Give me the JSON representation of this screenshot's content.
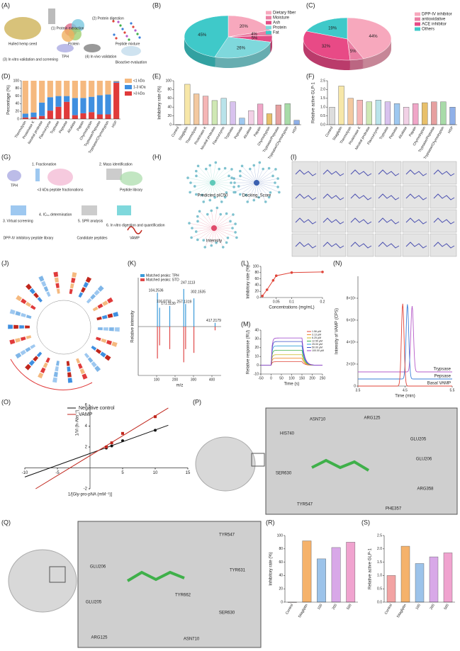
{
  "panel_labels": [
    "(A)",
    "(B)",
    "(C)",
    "(D)",
    "(E)",
    "(F)",
    "(G)",
    "(H)",
    "(I)",
    "(J)",
    "(K)",
    "(L)",
    "(M)",
    "(N)",
    "(O)",
    "(P)",
    "(Q)",
    "(R)",
    "(S)"
  ],
  "diagrams": {
    "A": [
      "Hulled hemp seed",
      "(1) Protein extraction",
      "Protein",
      "(2) Protein digestion",
      "Peptide mixture",
      "(3) In vitro validation and screening",
      "TPH",
      "(4) In vivo validation",
      "Bioactive evaluation"
    ],
    "G": [
      "TPH",
      "1. Fractionation",
      "<3 kDa peptide fractionations",
      "2. Mass identification",
      "Peptide library",
      "3. Virtual screening",
      "4. IC₅₀ determination",
      "5. SPR analysis",
      "6. In vitro digestion and quantification",
      "DPP-IV inhibitory peptide library",
      "Candidate peptides",
      "VAMP"
    ],
    "H": [
      "Predicted pIC50",
      "Docking_Score",
      "Intensity"
    ],
    "P": [
      "ASN710",
      "ARG125",
      "GLU205",
      "GLU206",
      "HIS740",
      "SER630",
      "TYR547",
      "PHE357",
      "ARG358"
    ],
    "Q": [
      "TYR547",
      "TYR631",
      "GLU206",
      "GLU205",
      "TYR662",
      "SER630",
      "ARG125",
      "ASN710"
    ]
  },
  "chart_data": [
    {
      "type": "pie",
      "categories": [
        "Dietary fiber",
        "Moisture",
        "Ash",
        "Protein",
        "Fat"
      ],
      "values": [
        20,
        4,
        5,
        26,
        45
      ],
      "value_labels": [
        "20%",
        "4%",
        "5%",
        "26%",
        "45%"
      ],
      "colors": [
        "#f7a8bd",
        "#ea7fa3",
        "#e34d86",
        "#7fd8dc",
        "#3fc9c9"
      ]
    },
    {
      "type": "pie",
      "categories": [
        "DPP-IV inhibitor",
        "antioxidative",
        "ACE inhibitor",
        "Others"
      ],
      "values": [
        44,
        5,
        32,
        19
      ],
      "value_labels": [
        "44%",
        "5%",
        "32%",
        "19%"
      ],
      "colors": [
        "#f7a8bd",
        "#ea7fa3",
        "#e84a86",
        "#3fc9c9"
      ]
    },
    {
      "type": "bar",
      "ylabel": "Percentage (%)",
      "categories": [
        "Thermolysin",
        "Proteinase K",
        "Neutral protease",
        "Flavourzyme",
        "Trypsase",
        "Pepsase",
        "Alcalase",
        "Papain",
        "Chymotrypsin",
        "Trypsase/Pepsase",
        "Trypsase/Chymotrypsin",
        "HSP"
      ],
      "series": [
        {
          "name": "<1 kDa",
          "color": "#f5b97f",
          "values": [
            86,
            83,
            57,
            43,
            40,
            40,
            45,
            45,
            42,
            38,
            36,
            2
          ]
        },
        {
          "name": "1-3 kDa",
          "color": "#3f8fe0",
          "values": [
            10,
            12,
            35,
            35,
            28,
            15,
            45,
            40,
            40,
            50,
            52,
            3
          ]
        },
        {
          "name": ">3 kDa",
          "color": "#e03a3a",
          "values": [
            4,
            5,
            8,
            22,
            32,
            45,
            10,
            15,
            18,
            12,
            12,
            95
          ]
        }
      ],
      "ylim": [
        0,
        100
      ],
      "yticks": [
        0,
        20,
        40,
        60,
        80,
        100
      ]
    },
    {
      "type": "bar",
      "ylabel": "Inhibitory rate (%)",
      "categories": [
        "Control",
        "Sitagliptin",
        "Thermolysin",
        "Proteinase K",
        "Neutral protease",
        "Flavourzyme",
        "Trypsase",
        "Pepsase",
        "Alcalase",
        "Papain",
        "Chymotrypsin",
        "Trypsase/Pepsase",
        "Trypsase/Chymotrypsin",
        "HSP"
      ],
      "values": [
        0,
        92,
        70,
        65,
        55,
        60,
        52,
        15,
        32,
        47,
        25,
        45,
        48,
        10
      ],
      "colors": [
        "#dddddd",
        "#f7e7a8",
        "#f3c9a0",
        "#f5b6b6",
        "#cfe8b4",
        "#b9e3ea",
        "#d8c2ee",
        "#9ec8f0",
        "#f2d1e6",
        "#f0a6c8",
        "#e8c06a",
        "#e6a0a0",
        "#a8dba8",
        "#8fb0e8"
      ],
      "ylim": [
        0,
        100
      ],
      "yticks": [
        0,
        20,
        40,
        60,
        80,
        100
      ]
    },
    {
      "type": "bar",
      "ylabel": "Relative active GLP-1",
      "categories": [
        "Control",
        "Sitagliptin",
        "Thermolysin",
        "Proteinase K",
        "Neutral protease",
        "Flavourzyme",
        "Trypsase",
        "Pepsase",
        "Alcalase",
        "Papain",
        "Chymotrypsin",
        "Trypsase/Pepsase",
        "Trypsase/Chymotrypsin",
        "HSP"
      ],
      "values": [
        1.0,
        2.2,
        1.5,
        1.4,
        1.3,
        1.4,
        1.3,
        1.2,
        1.0,
        1.2,
        1.25,
        1.3,
        1.3,
        1.0
      ],
      "colors": [
        "#dddddd",
        "#f7e7a8",
        "#f3c9a0",
        "#f5b6b6",
        "#cfe8b4",
        "#b9e3ea",
        "#d8c2ee",
        "#9ec8f0",
        "#f2d1e6",
        "#f0a6c8",
        "#e8c06a",
        "#e6a0a0",
        "#a8dba8",
        "#8fb0e8"
      ],
      "ylim": [
        0,
        2.5
      ],
      "yticks": [
        {
          "value": 0,
          "label": "0.0"
        },
        {
          "value": 0.5,
          "label": "0.5"
        },
        {
          "value": 1,
          "label": "1.0"
        },
        {
          "value": 1.5,
          "label": "1.5"
        },
        {
          "value": 2,
          "label": "2.0"
        },
        {
          "value": 2.5,
          "label": "2.5"
        }
      ]
    },
    {
      "type": "spectrum",
      "xlabel": "m/z",
      "ylabel": "Relative intensity",
      "x": [
        104.2536,
        116.071,
        171.113,
        247.1113,
        257.1319,
        302.1535,
        417.2179
      ],
      "x_labels": [
        "104.2536",
        "116.0710",
        "171.1130",
        "247.1113",
        "257.1319",
        "302.1535",
        "417.2179"
      ],
      "series": [
        {
          "name": "Matched peaks: TPH",
          "color": "#3a9ad9",
          "values": [
            0.9,
            0.5,
            0.55,
            1.0,
            0.6,
            0.75,
            0.1
          ]
        },
        {
          "name": "Matched peaks: STD",
          "color": "#e04a4a",
          "values": [
            0.85,
            0.5,
            0.6,
            0.95,
            0.6,
            0.7,
            0.1
          ]
        }
      ],
      "xlim": [
        0,
        450
      ],
      "xticks": [
        100,
        200,
        300,
        400
      ],
      "ylim": [
        0,
        1.3
      ]
    },
    {
      "type": "line",
      "xlabel": "Concentrations (mg/mL)",
      "ylabel": "Inhibitory rate (%)",
      "x": [
        0.005,
        0.02,
        0.04,
        0.05,
        0.1,
        0.2
      ],
      "values": [
        5,
        25,
        55,
        70,
        80,
        82
      ],
      "color": "#e0453a",
      "xlim": [
        0,
        0.2
      ],
      "xticks": [
        0.05,
        0.1,
        0.2
      ],
      "ylim": [
        0,
        100
      ],
      "yticks": [
        0,
        20,
        40,
        60,
        80,
        100
      ]
    },
    {
      "type": "sensorgram",
      "xlabel": "Time (s)",
      "ylabel": "Relative response (RU)",
      "series": [
        {
          "name": "1.56 μM",
          "color": "#e0453a",
          "values": [
            4
          ]
        },
        {
          "name": "3.13 μM",
          "color": "#f08a2c",
          "values": [
            8
          ]
        },
        {
          "name": "6.25 μM",
          "color": "#c9b820",
          "values": [
            12
          ]
        },
        {
          "name": "12.50 μM",
          "color": "#3fb04a",
          "values": [
            17
          ]
        },
        {
          "name": "25.00 μM",
          "color": "#2f9fd8",
          "values": [
            22
          ]
        },
        {
          "name": "50.00 μM",
          "color": "#3a4fc9",
          "values": [
            27
          ]
        },
        {
          "name": "100.00 μM",
          "color": "#9a3fc9",
          "values": [
            31
          ]
        }
      ],
      "xlim": [
        -50,
        250
      ],
      "xticks": [
        -50,
        0,
        50,
        100,
        150,
        200,
        250
      ],
      "ylim": [
        -10,
        40
      ],
      "yticks": [
        -10,
        0,
        10,
        20,
        30,
        40
      ]
    },
    {
      "type": "chromatogram",
      "xlabel": "Time (min)",
      "ylabel": "Intensity of VAMP (CPS)",
      "series": [
        {
          "name": "Trypsase",
          "color": "#b65cc9",
          "x": [
            4.65
          ],
          "values": [
            600000
          ]
        },
        {
          "name": "Pepsase",
          "color": "#3a7fd9",
          "x": [
            4.55
          ],
          "values": [
            680000
          ]
        },
        {
          "name": "Basal VAMP",
          "color": "#e0453a",
          "x": [
            4.45
          ],
          "values": [
            750000
          ]
        }
      ],
      "xlim": [
        3.5,
        5.5
      ],
      "xticks": [
        3.5,
        4.5,
        5.5
      ],
      "ylim": [
        0,
        1000000
      ],
      "yticks": [
        0,
        {
          "value": 200000,
          "label": "2×10⁵"
        },
        {
          "value": 400000,
          "label": "4×10⁵"
        },
        {
          "value": 600000,
          "label": "6×10⁵"
        },
        {
          "value": 800000,
          "label": "8×10⁵"
        }
      ]
    },
    {
      "type": "scatter",
      "fit_lines": true,
      "xlabel": "1/[Gly-pro-pNA (mM⁻¹)]",
      "ylabel": "1/Vi (h·Abs⁻¹)",
      "series": [
        {
          "name": "Negative control",
          "color": "#111111",
          "x": [
            2.5,
            3.33,
            5,
            10
          ],
          "values": [
            1.9,
            2.1,
            2.6,
            3.6
          ]
        },
        {
          "name": "VAMP",
          "color": "#c0261c",
          "x": [
            2.5,
            3.33,
            5,
            10
          ],
          "values": [
            2.0,
            2.4,
            3.3,
            4.9
          ]
        }
      ],
      "xlim": [
        -10,
        15
      ],
      "xticks": [
        -10,
        -5,
        5,
        10,
        15
      ],
      "ylim": [
        -2,
        6
      ],
      "yticks": [
        -2,
        2,
        4,
        6
      ]
    },
    {
      "type": "bar",
      "ylabel": "Inhibitory rate (%)",
      "categories": [
        "Control",
        "Sitagliptin",
        "100",
        "200",
        "500"
      ],
      "values": [
        0,
        92,
        65,
        82,
        90
      ],
      "colors": [
        "#f2a3a3",
        "#f5b26b",
        "#9cc3ea",
        "#d8a8e8",
        "#f0a3cf"
      ],
      "ylim": [
        0,
        100
      ],
      "yticks": [
        0,
        20,
        40,
        60,
        80,
        100
      ]
    },
    {
      "type": "bar",
      "ylabel": "Relative active GLP-1",
      "categories": [
        "Control",
        "Sitagliptin",
        "100",
        "200",
        "500"
      ],
      "values": [
        1.0,
        2.1,
        1.45,
        1.7,
        1.85
      ],
      "colors": [
        "#f2a3a3",
        "#f5b26b",
        "#9cc3ea",
        "#d8a8e8",
        "#f0a3cf"
      ],
      "ylim": [
        0,
        2.5
      ],
      "yticks": [
        {
          "value": 0,
          "label": "0.0"
        },
        {
          "value": 0.5,
          "label": "0.5"
        },
        {
          "value": 1,
          "label": "1.0"
        },
        {
          "value": 1.5,
          "label": "1.5"
        },
        {
          "value": 2,
          "label": "2.0"
        },
        {
          "value": 2.5,
          "label": "2.5"
        }
      ]
    }
  ]
}
